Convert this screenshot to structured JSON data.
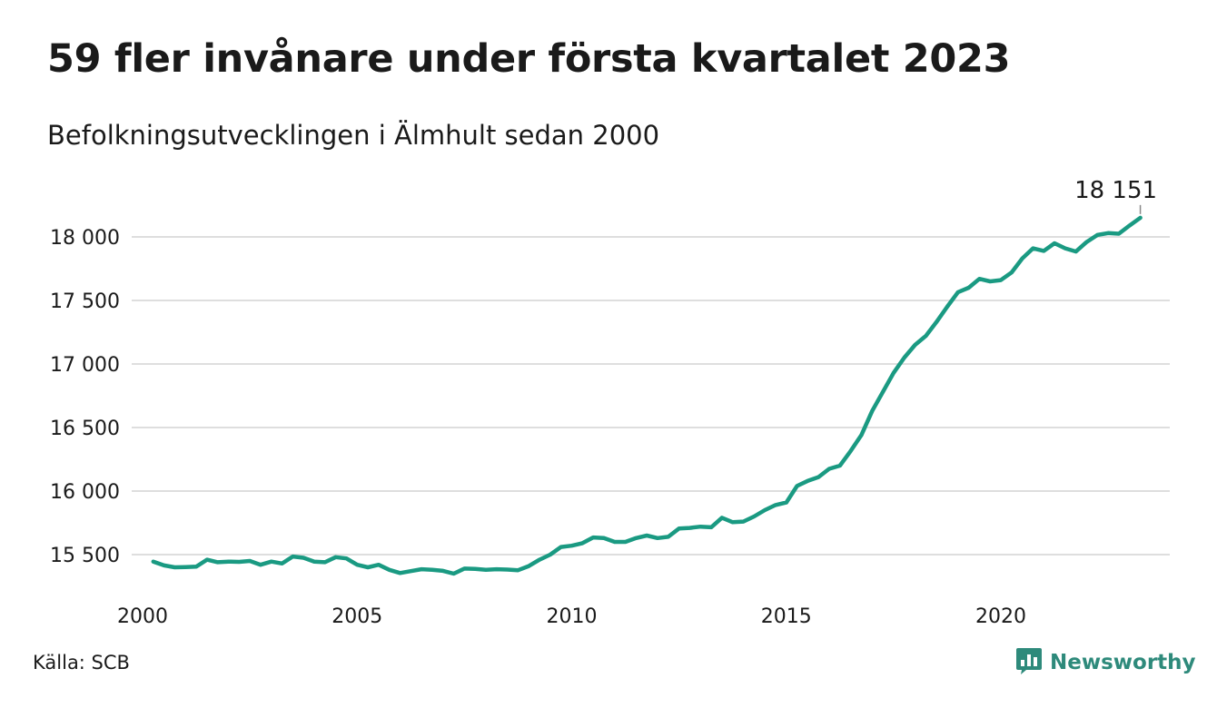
{
  "header": {
    "title": "59 fler invånare under första kvartalet 2023",
    "subtitle": "Befolkningsutvecklingen i Älmhult sedan 2000"
  },
  "footer": {
    "source": "Källa: SCB",
    "brand": "Newsworthy",
    "brand_icon": "bar-chart-speech-bubble-icon"
  },
  "colors": {
    "line": "#1a9a82",
    "grid": "#dedede",
    "brand": "#2e8a7b"
  },
  "chart_data": {
    "type": "line",
    "title": "59 fler invånare under första kvartalet 2023",
    "subtitle": "Befolkningsutvecklingen i Älmhult sedan 2000",
    "xlabel": "",
    "ylabel": "",
    "x_ticks": [
      2000,
      2005,
      2010,
      2015,
      2020
    ],
    "y_ticks": [
      15500,
      16000,
      16500,
      17000,
      17500,
      18000
    ],
    "y_tick_labels": [
      "15 500",
      "16 000",
      "16 500",
      "17 000",
      "17 500",
      "18 000"
    ],
    "ylim": [
      15270,
      18280
    ],
    "xlim": [
      2000,
      2023.9
    ],
    "grid": "horizontal",
    "end_label": "18 151",
    "series": [
      {
        "x": [
          2000.25,
          2000.5,
          2000.75,
          2001,
          2001.25,
          2001.5,
          2001.75,
          2002,
          2002.25,
          2002.5,
          2002.75,
          2003,
          2003.25,
          2003.5,
          2003.75,
          2004,
          2004.25,
          2004.5,
          2004.75,
          2005,
          2005.25,
          2005.5,
          2005.75,
          2006,
          2006.25,
          2006.5,
          2006.75,
          2007,
          2007.25,
          2007.5,
          2007.75,
          2008,
          2008.25,
          2008.5,
          2008.75,
          2009,
          2009.25,
          2009.5,
          2009.75,
          2010,
          2010.25,
          2010.5,
          2010.75,
          2011,
          2011.25,
          2011.5,
          2011.75,
          2012,
          2012.25,
          2012.5,
          2012.75,
          2013,
          2013.25,
          2013.5,
          2013.75,
          2014,
          2014.25,
          2014.5,
          2014.75,
          2015,
          2015.25,
          2015.5,
          2015.75,
          2016,
          2016.25,
          2016.5,
          2016.75,
          2017,
          2017.25,
          2017.5,
          2017.75,
          2018,
          2018.25,
          2018.5,
          2018.75,
          2019,
          2019.25,
          2019.5,
          2019.75,
          2020,
          2020.25,
          2020.5,
          2020.75,
          2021,
          2021.25,
          2021.5,
          2021.75,
          2022,
          2022.25,
          2022.5,
          2022.75,
          2023,
          2023.25
        ],
        "values": [
          15445,
          15415,
          15400,
          15402,
          15405,
          15460,
          15440,
          15445,
          15443,
          15450,
          15420,
          15445,
          15430,
          15485,
          15475,
          15445,
          15440,
          15480,
          15470,
          15420,
          15400,
          15420,
          15380,
          15355,
          15370,
          15385,
          15380,
          15372,
          15350,
          15390,
          15387,
          15380,
          15385,
          15382,
          15377,
          15410,
          15460,
          15500,
          15560,
          15570,
          15590,
          15635,
          15630,
          15600,
          15600,
          15630,
          15650,
          15630,
          15640,
          15705,
          15710,
          15720,
          15715,
          15790,
          15755,
          15760,
          15800,
          15850,
          15890,
          15910,
          16040,
          16080,
          16110,
          16175,
          16200,
          16315,
          16440,
          16630,
          16780,
          16930,
          17050,
          17150,
          17220,
          17330,
          17450,
          17565,
          17600,
          17670,
          17650,
          17660,
          17720,
          17830,
          17910,
          17890,
          17950,
          17910,
          17885,
          17960,
          18015,
          18030,
          18025,
          18090,
          18151
        ]
      }
    ]
  }
}
